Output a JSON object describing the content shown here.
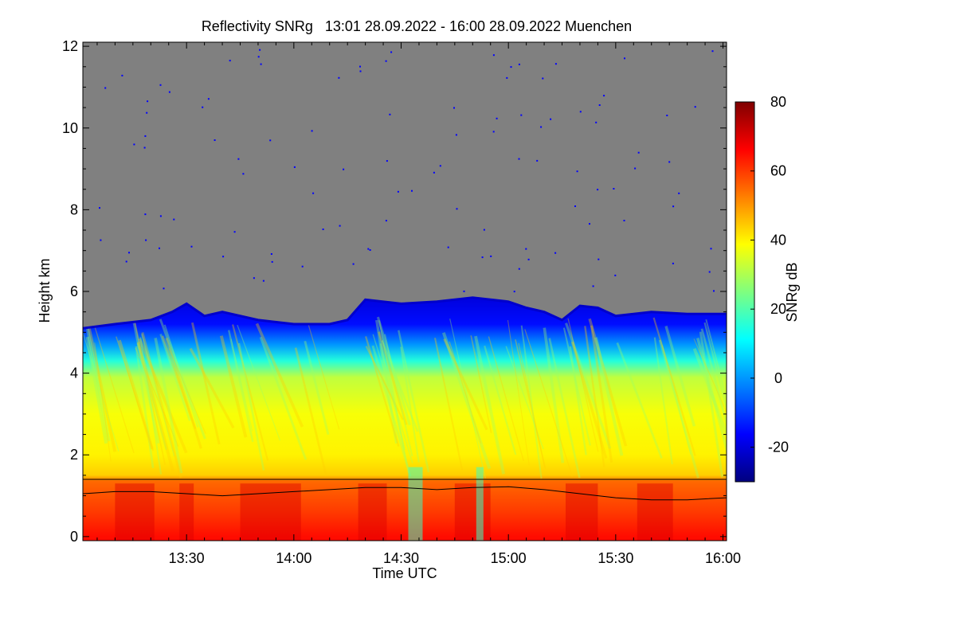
{
  "chart_data": {
    "type": "heatmap",
    "title": "Reflectivity SNRg   13:01 28.09.2022 - 16:00 28.09.2022 Muenchen",
    "xlabel": "Time UTC",
    "ylabel": "Height km",
    "colorbar_label": "SNRg dB",
    "x_range_minutes": [
      781,
      961
    ],
    "xlim_labels": [
      "13:01",
      "16:00"
    ],
    "x_ticks": [
      {
        "label": "13:30",
        "minutes": 810
      },
      {
        "label": "14:00",
        "minutes": 840
      },
      {
        "label": "14:30",
        "minutes": 870
      },
      {
        "label": "15:00",
        "minutes": 900
      },
      {
        "label": "15:30",
        "minutes": 930
      },
      {
        "label": "16:00",
        "minutes": 960
      }
    ],
    "ylim": [
      -0.1,
      12.1
    ],
    "y_ticks": [
      0,
      2,
      4,
      6,
      8,
      10,
      12
    ],
    "colorbar_range": [
      -30,
      80
    ],
    "colorbar_ticks": [
      -20,
      0,
      20,
      40,
      60,
      80
    ],
    "colormap": [
      "#00007f",
      "#0000ff",
      "#007fff",
      "#00ffff",
      "#7fff7f",
      "#ffff00",
      "#ff7f00",
      "#ff0000",
      "#7f0000"
    ],
    "no_signal_color": "#808080",
    "horizontal_line_km": 1.4,
    "cloud_top_km": [
      [
        781,
        5.1
      ],
      [
        790,
        5.2
      ],
      [
        800,
        5.3
      ],
      [
        806,
        5.5
      ],
      [
        810,
        5.7
      ],
      [
        815,
        5.4
      ],
      [
        820,
        5.5
      ],
      [
        830,
        5.3
      ],
      [
        840,
        5.2
      ],
      [
        850,
        5.2
      ],
      [
        855,
        5.3
      ],
      [
        860,
        5.8
      ],
      [
        870,
        5.7
      ],
      [
        880,
        5.75
      ],
      [
        890,
        5.85
      ],
      [
        895,
        5.8
      ],
      [
        900,
        5.75
      ],
      [
        905,
        5.6
      ],
      [
        910,
        5.5
      ],
      [
        915,
        5.3
      ],
      [
        920,
        5.65
      ],
      [
        925,
        5.6
      ],
      [
        930,
        5.4
      ],
      [
        940,
        5.5
      ],
      [
        950,
        5.45
      ],
      [
        961,
        5.45
      ]
    ],
    "boundary_layer_km": [
      [
        781,
        1.05
      ],
      [
        790,
        1.1
      ],
      [
        800,
        1.1
      ],
      [
        810,
        1.05
      ],
      [
        820,
        1.0
      ],
      [
        830,
        1.05
      ],
      [
        840,
        1.1
      ],
      [
        850,
        1.15
      ],
      [
        860,
        1.2
      ],
      [
        870,
        1.2
      ],
      [
        880,
        1.15
      ],
      [
        890,
        1.2
      ],
      [
        900,
        1.22
      ],
      [
        910,
        1.15
      ],
      [
        920,
        1.05
      ],
      [
        930,
        0.95
      ],
      [
        940,
        0.9
      ],
      [
        950,
        0.9
      ],
      [
        961,
        0.95
      ]
    ]
  }
}
